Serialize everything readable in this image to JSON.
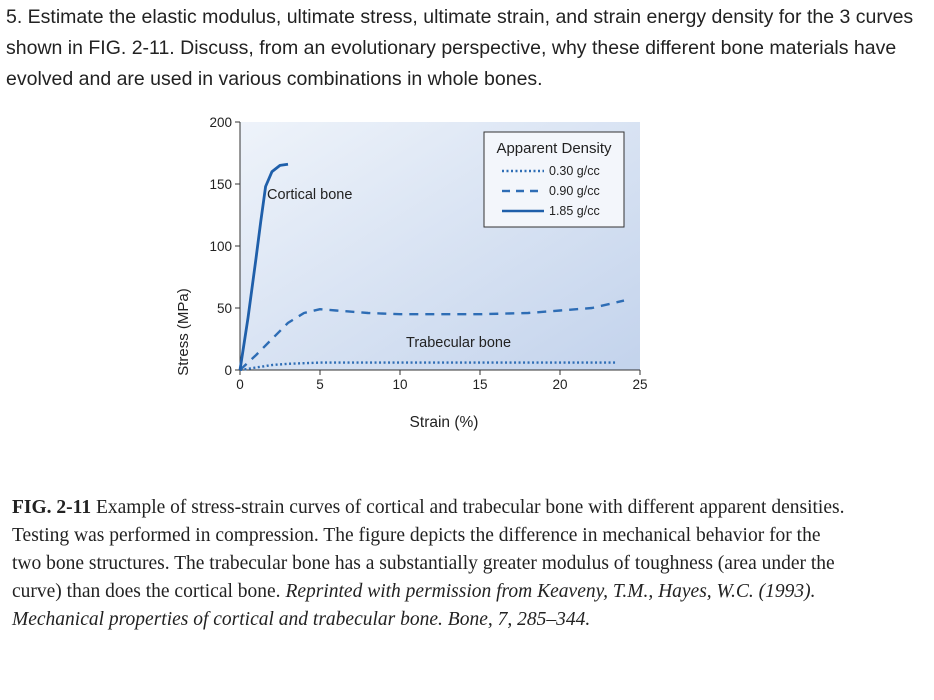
{
  "question": {
    "text": "5. Estimate the elastic modulus, ultimate stress, ultimate strain, and strain energy density for the 3 curves shown in FIG. 2-11. Discuss, from an evolutionary perspective, why these different bone materials have evolved and are used in various combinations in whole bones."
  },
  "chart_data": {
    "type": "line",
    "title": "",
    "xlabel": "Strain (%)",
    "ylabel": "Stress (MPa)",
    "xlim": [
      0,
      25
    ],
    "ylim": [
      0,
      200
    ],
    "xticks": [
      "0",
      "5",
      "10",
      "15",
      "20",
      "25"
    ],
    "yticks": [
      "0",
      "50",
      "100",
      "150",
      "200"
    ],
    "grid": false,
    "legend_title": "Apparent Density",
    "legend_position": "top-right",
    "background_color": "#cfdcf0",
    "annotations": [
      {
        "text": "Cortical bone"
      },
      {
        "text": "Trabecular bone"
      }
    ],
    "series": [
      {
        "name": "0.30 g/cc",
        "style": "dotted",
        "color": "#2e6db5",
        "x": [
          0,
          0.5,
          1,
          1.5,
          2,
          3,
          4,
          5,
          7,
          10,
          15,
          20,
          23.5
        ],
        "y": [
          0,
          1,
          2,
          3,
          4,
          5,
          5.5,
          6,
          6,
          6,
          6,
          6,
          6
        ]
      },
      {
        "name": "0.90 g/cc",
        "style": "dashed",
        "color": "#2e6db5",
        "x": [
          0,
          1,
          2,
          3,
          4,
          5,
          6,
          8,
          10,
          12,
          15,
          18,
          20,
          22,
          24
        ],
        "y": [
          0,
          12,
          25,
          38,
          46,
          49,
          48,
          46,
          45,
          45,
          45,
          46,
          48,
          50,
          56
        ]
      },
      {
        "name": "1.85 g/cc",
        "style": "solid",
        "color": "#1f5faa",
        "x": [
          0,
          0.5,
          1,
          1.3,
          1.6,
          2,
          2.5,
          3
        ],
        "y": [
          0,
          42,
          90,
          120,
          148,
          160,
          165,
          166
        ]
      }
    ]
  },
  "caption": {
    "label": "FIG. 2-11",
    "body": " Example of stress-strain curves of cortical and trabecular bone with different apparent densities. Testing was performed in compression. The figure depicts the difference in mechanical behavior for the two bone structures. The trabecular bone has a substantially greater modulus of toughness (area under the curve) than does the cortical bone. ",
    "credit": "Reprinted with permission from Keaveny, T.M., Hayes, W.C. (1993). Mechanical properties of cortical and trabecular bone. Bone, 7, 285–344."
  }
}
